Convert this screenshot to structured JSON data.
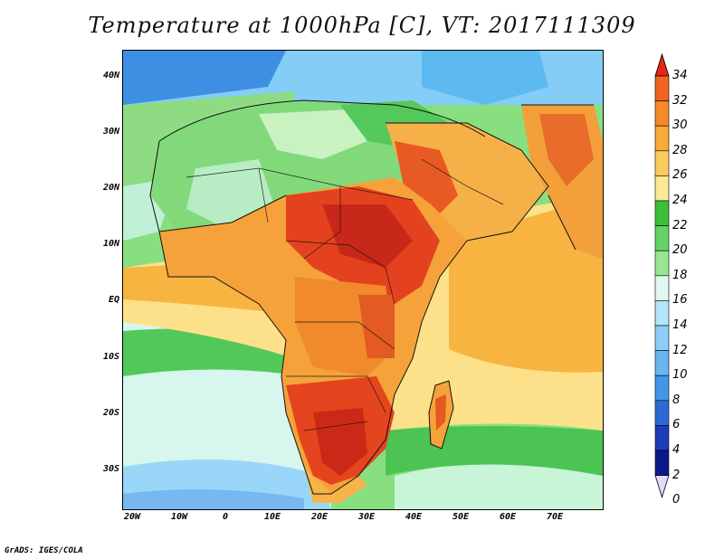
{
  "title": "Temperature at 1000hPa [C], VT: 2017111309",
  "credit": "GrADS: IGES/COLA",
  "lat_ticks": [
    "40N",
    "30N",
    "20N",
    "10N",
    "EQ",
    "10S",
    "20S",
    "30S"
  ],
  "lon_ticks": [
    "20W",
    "10W",
    "0",
    "10E",
    "20E",
    "30E",
    "40E",
    "50E",
    "60E",
    "70E"
  ],
  "colorbar": {
    "levels": [
      "34",
      "32",
      "30",
      "28",
      "26",
      "24",
      "22",
      "20",
      "18",
      "16",
      "14",
      "12",
      "10",
      "8",
      "6",
      "4",
      "2",
      "0"
    ],
    "colors_top_to_bottom": [
      "#f04020",
      "#f06422",
      "#f58a2a",
      "#f7a93a",
      "#fbcb5e",
      "#fde894",
      "#3cbf3c",
      "#64d364",
      "#98e690",
      "#e0f8f0",
      "#b4e4fa",
      "#8ccdf6",
      "#6ab4f0",
      "#4196e6",
      "#2a6ad2",
      "#1c3cb8",
      "#0c188a",
      "#e0dcf8"
    ],
    "top_arrow_color": "#e02814",
    "bottom_arrow_color": "#e0dcf8"
  },
  "map": {
    "lon_range": [
      -22,
      80
    ],
    "lat_range": [
      -37,
      45
    ],
    "ocean_north_color": "#6ec6ff",
    "ocean_south_color": "#9be58f",
    "land_hot_color": "#d8281c",
    "land_warm_color": "#f6a43a",
    "sahara_color": "#7ad47a",
    "indian_ocean_color": "#f7b440"
  }
}
